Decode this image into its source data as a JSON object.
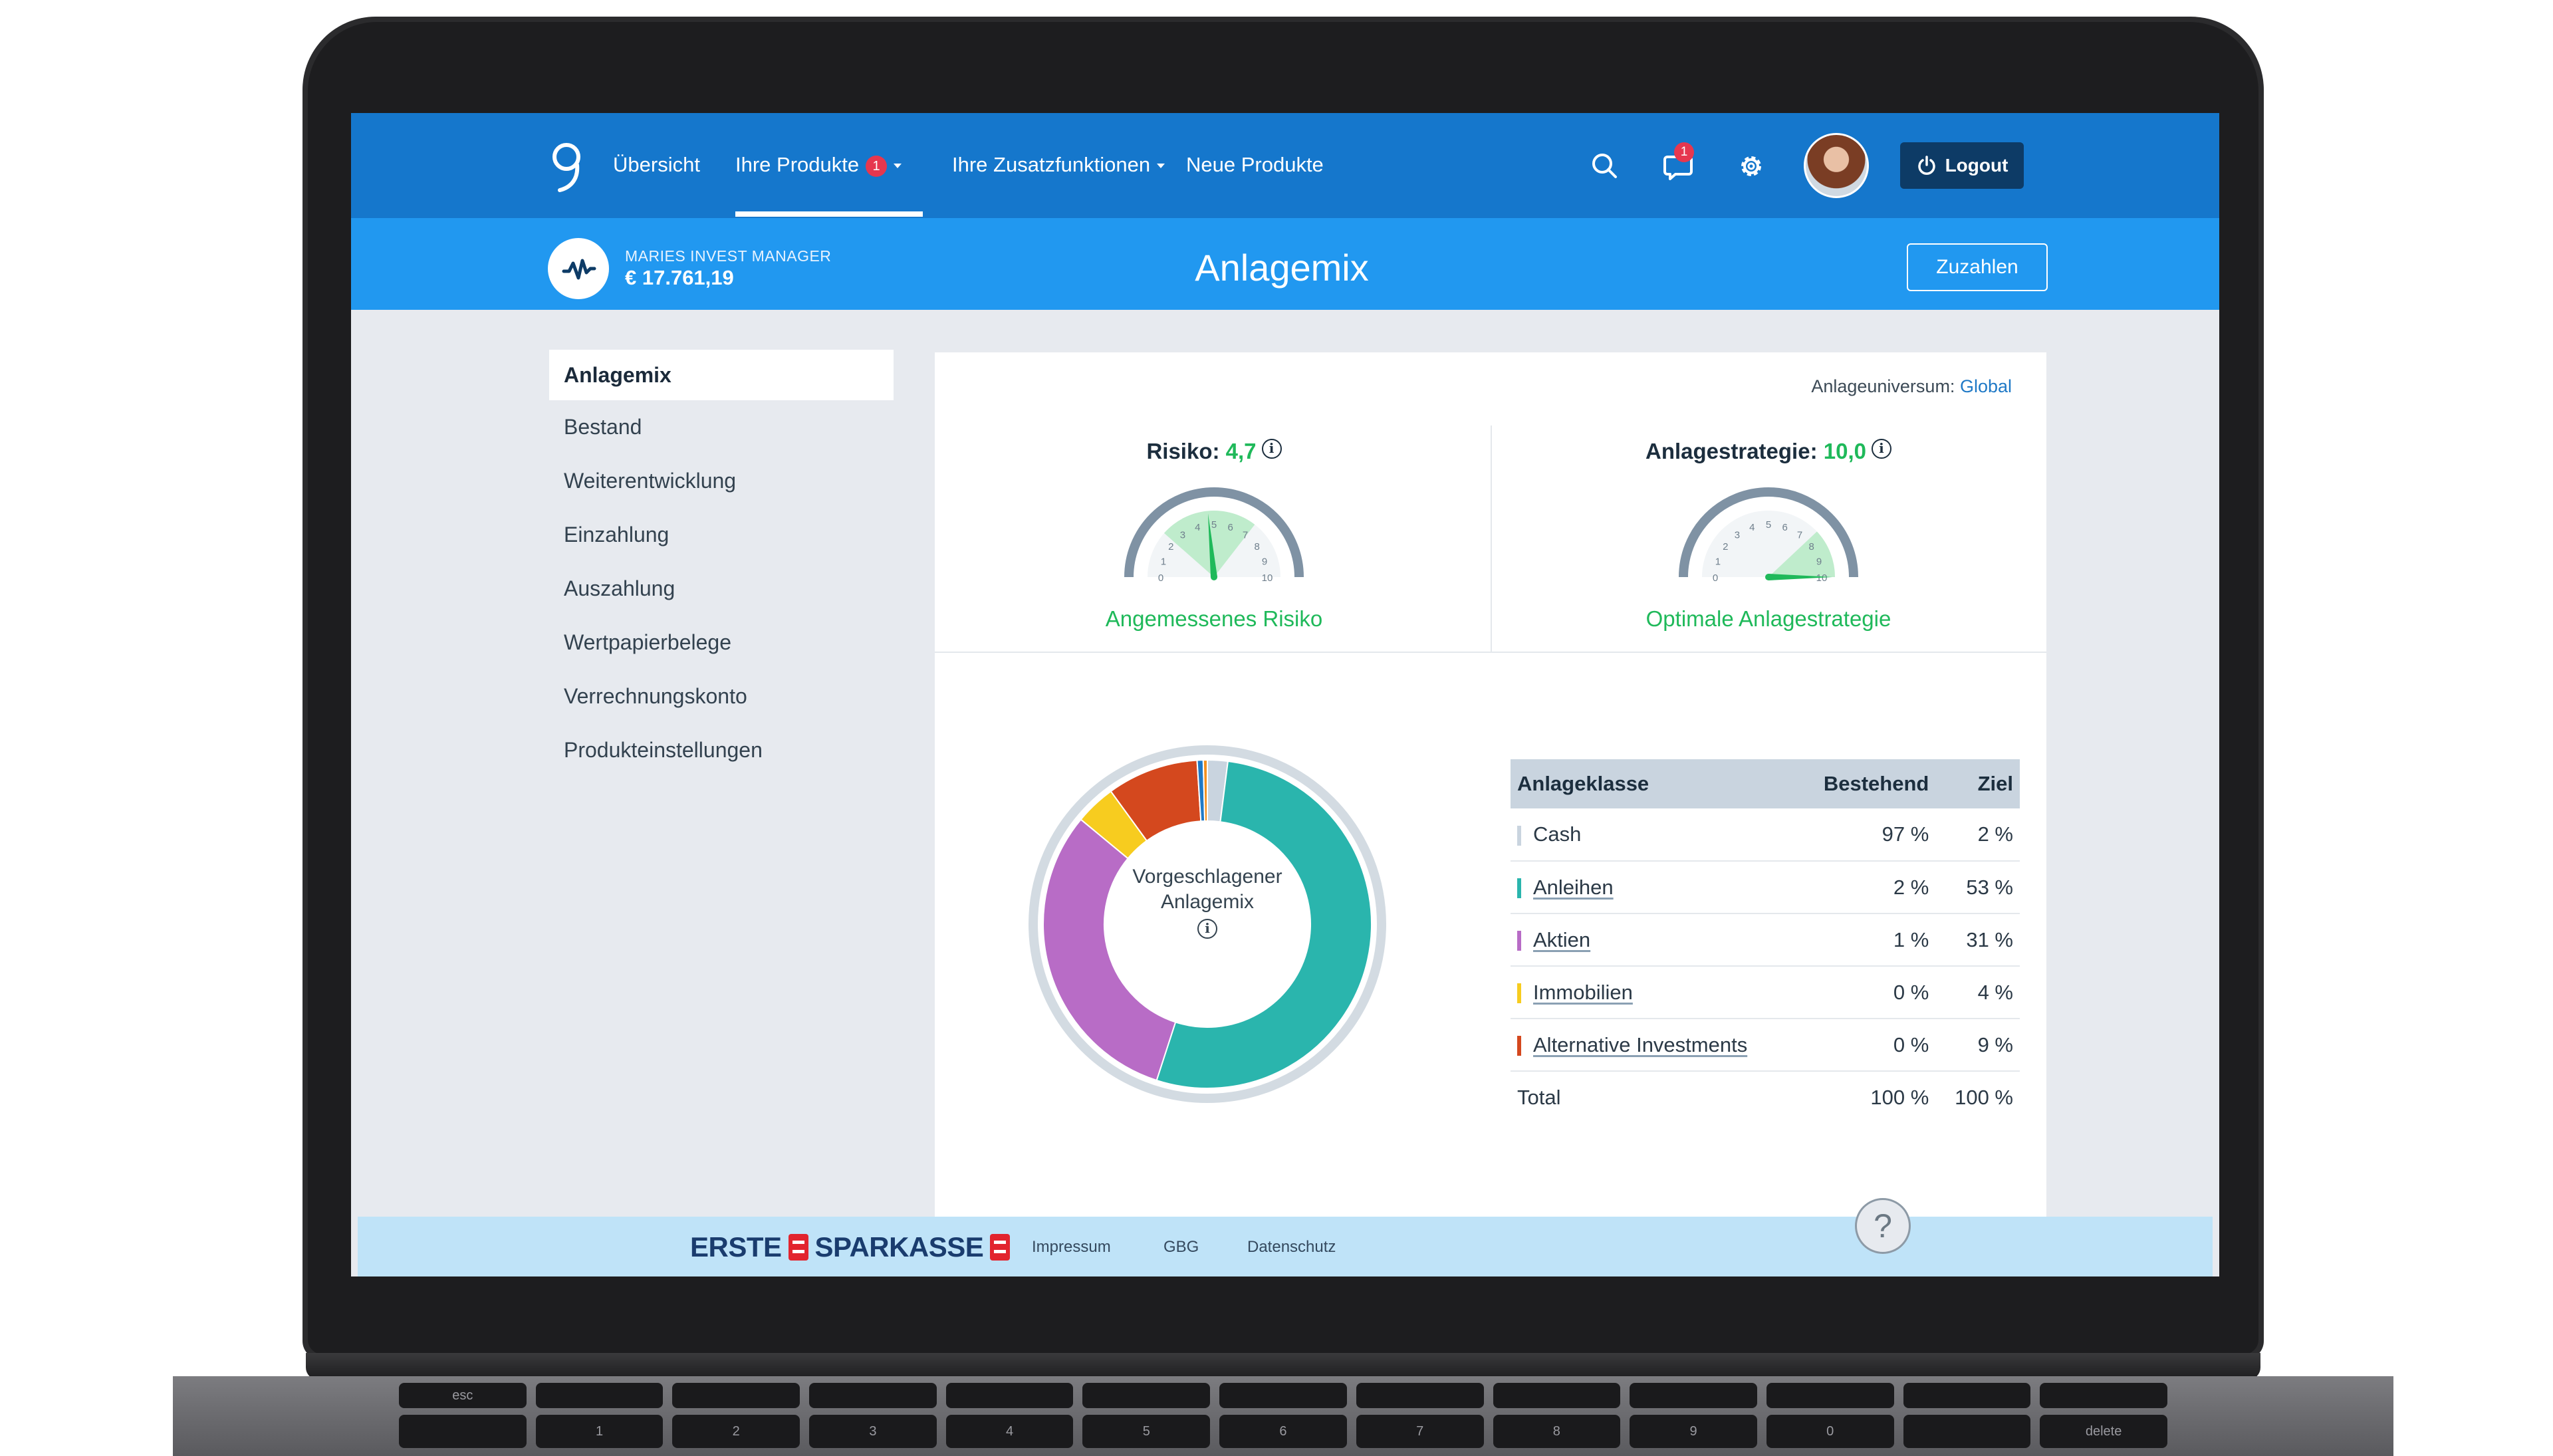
{
  "nav": {
    "items": [
      "Übersicht",
      "Ihre Produkte",
      "Ihre Zusatzfunktionen",
      "Neue Produkte"
    ],
    "produkte_badge": "1",
    "messages_badge": "1",
    "logout_label": "Logout"
  },
  "subheader": {
    "product_name": "MARIES INVEST MANAGER",
    "balance": "€ 17.761,19",
    "page_title": "Anlagemix",
    "zuzahlen_label": "Zuzahlen"
  },
  "sidebar": {
    "items": [
      "Anlagemix",
      "Bestand",
      "Weiterentwicklung",
      "Einzahlung",
      "Auszahlung",
      "Wertpapierbelege",
      "Verrechnungskonto",
      "Produkteinstellungen"
    ]
  },
  "main": {
    "universe_label": "Anlageuniversum:",
    "universe_value": "Global",
    "risk": {
      "title": "Risiko:",
      "value": "4,7",
      "value_num": 4.7,
      "subtitle": "Angemessenes Risiko",
      "scale": [
        "0",
        "1",
        "2",
        "3",
        "4",
        "5",
        "6",
        "7",
        "8",
        "9",
        "10"
      ]
    },
    "strategy": {
      "title": "Anlagestrategie:",
      "value": "10,0",
      "value_num": 10.0,
      "subtitle": "Optimale Anlagestrategie",
      "scale": [
        "0",
        "1",
        "2",
        "3",
        "4",
        "5",
        "6",
        "7",
        "8",
        "9",
        "10"
      ]
    },
    "donut": {
      "center_line1": "Vorgeschlagener",
      "center_line2": "Anlagemix",
      "segments": [
        {
          "name": "Cash",
          "value": 2,
          "color": "#c9d4df"
        },
        {
          "name": "Anleihen",
          "value": 53,
          "color": "#2ab5ad"
        },
        {
          "name": "Aktien",
          "value": 31,
          "color": "#b86cc6"
        },
        {
          "name": "Immobilien",
          "value": 4,
          "color": "#f7cc1f"
        },
        {
          "name": "Alternative Investments",
          "value": 9,
          "color": "#d4481e"
        },
        {
          "name": "",
          "value": 0.6,
          "color": "#1f79c6"
        },
        {
          "name": "",
          "value": 0.4,
          "color": "#f4901e"
        }
      ]
    },
    "table": {
      "headers": [
        "Anlageklasse",
        "Bestehend",
        "Ziel"
      ],
      "rows": [
        {
          "name": "Cash",
          "current": "97 %",
          "target": "2 %",
          "color": "#c9d4df"
        },
        {
          "name": "Anleihen",
          "current": "2 %",
          "target": "53 %",
          "color": "#2ab5ad"
        },
        {
          "name": "Aktien",
          "current": "1 %",
          "target": "31 %",
          "color": "#b86cc6"
        },
        {
          "name": "Immobilien",
          "current": "0 %",
          "target": "4 %",
          "color": "#f7cc1f"
        },
        {
          "name": "Alternative Investments",
          "current": "0 %",
          "target": "9 %",
          "color": "#d4481e"
        }
      ],
      "total": {
        "name": "Total",
        "current": "100 %",
        "target": "100 %"
      }
    }
  },
  "footer": {
    "brand": "ERSTE SPARKASSE",
    "brand_part1": "ERSTE",
    "brand_part2": "SPARKASSE",
    "links": [
      "Impressum",
      "GBG",
      "Datenschutz"
    ],
    "help_label": "?"
  },
  "keyboard": {
    "labels": [
      "esc",
      "1",
      "2",
      "3",
      "4",
      "5",
      "6",
      "7",
      "8",
      "9",
      "0",
      "delete"
    ]
  }
}
